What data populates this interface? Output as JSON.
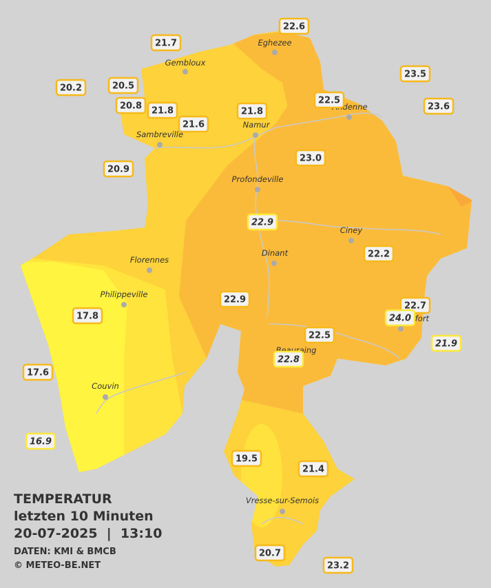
{
  "legend": {
    "title": "TEMPERATUR",
    "period": "letzten 10 Minuten",
    "datetime": "20-07-2025  |  13:10",
    "source": "DATEN: KMI & BMCB",
    "copyright": "© METEO-BE.NET"
  },
  "places": [
    "Eghezee",
    "Gembloux",
    "Andenne",
    "Namur",
    "Sambreville",
    "Profondeville",
    "Ciney",
    "Dinant",
    "Florennes",
    "Philippeville",
    "Beauraing",
    "Rochefort",
    "Couvin",
    "Vresse-sur-Semois"
  ],
  "stations": [
    {
      "label": "22.6"
    },
    {
      "label": "21.7"
    },
    {
      "label": "23.5"
    },
    {
      "label": "20.2"
    },
    {
      "label": "20.5"
    },
    {
      "label": "22.5"
    },
    {
      "label": "23.6"
    },
    {
      "label": "20.8"
    },
    {
      "label": "21.8"
    },
    {
      "label": "21.8"
    },
    {
      "label": "21.6"
    },
    {
      "label": "23.0"
    },
    {
      "label": "20.9"
    },
    {
      "label": "22.9",
      "italic": true
    },
    {
      "label": "22.2"
    },
    {
      "label": "22.9"
    },
    {
      "label": "22.7"
    },
    {
      "label": "24.0",
      "italic": true
    },
    {
      "label": "17.8"
    },
    {
      "label": "22.5"
    },
    {
      "label": "21.9",
      "italic": true
    },
    {
      "label": "22.8",
      "italic": true
    },
    {
      "label": "17.6"
    },
    {
      "label": "16.9",
      "italic": true
    },
    {
      "label": "19.5"
    },
    {
      "label": "21.4"
    },
    {
      "label": "20.7"
    },
    {
      "label": "23.2"
    }
  ]
}
